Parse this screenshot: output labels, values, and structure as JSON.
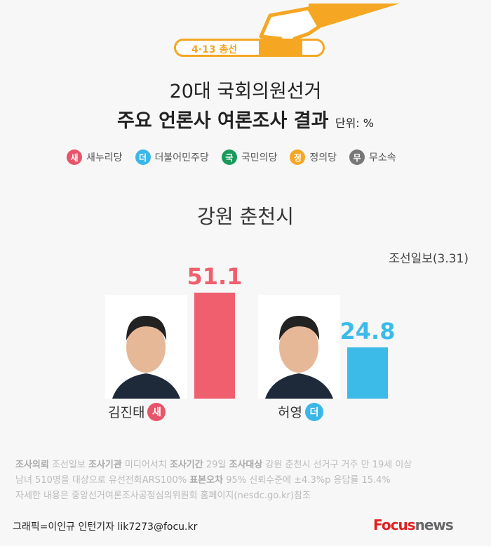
{
  "header": {
    "badge": "4·13 총선",
    "title_line1": "20대 국회의원선거",
    "title_line2": "주요 언론사 여론조사 결과",
    "unit": "단위: %"
  },
  "legend": [
    {
      "mark": "새",
      "label": "새누리당",
      "color": "#e8546a"
    },
    {
      "mark": "더",
      "label": "더불어민주당",
      "color": "#3bb6e8"
    },
    {
      "mark": "국",
      "label": "국민의당",
      "color": "#1a9a5a"
    },
    {
      "mark": "정",
      "label": "정의당",
      "color": "#f5a623"
    },
    {
      "mark": "무",
      "label": "무소속",
      "color": "#777777"
    }
  ],
  "chart_data": {
    "type": "bar",
    "title": "강원 춘천시",
    "source": "조선일보(3.31)",
    "categories": [
      "김진태",
      "허영"
    ],
    "parties": [
      "새",
      "더"
    ],
    "values": [
      51.1,
      24.8
    ],
    "colors": [
      "#ef5f6e",
      "#3cbbe9"
    ]
  },
  "notes": {
    "l1": [
      [
        "조사의뢰",
        true
      ],
      [
        " 조선일보 ",
        false
      ],
      [
        "조사기관",
        true
      ],
      [
        " 미디어서치  ",
        false
      ],
      [
        "조사기간",
        true
      ],
      [
        " 29일  ",
        false
      ],
      [
        "조사대상",
        true
      ],
      [
        " 강원 춘천시 선거구 거주 만 19세 이상",
        false
      ]
    ],
    "l2": [
      [
        "남녀 510명을 대상으로 유선전화ARS100% ",
        false
      ],
      [
        "표본오차",
        true
      ],
      [
        " 95% 신뢰수준에  ±4.3%p 응답률 15.4%",
        false
      ]
    ],
    "l3": [
      [
        "자세한 내용은 중앙선거여론조사공정심의위원회 홈페이지(nesdc.go.kr)참조",
        false
      ]
    ]
  },
  "footer": {
    "credit": "그래픽=이인규 인턴기자 lik7273@focu.kr",
    "logo_a": "Focus",
    "logo_b": "news"
  }
}
